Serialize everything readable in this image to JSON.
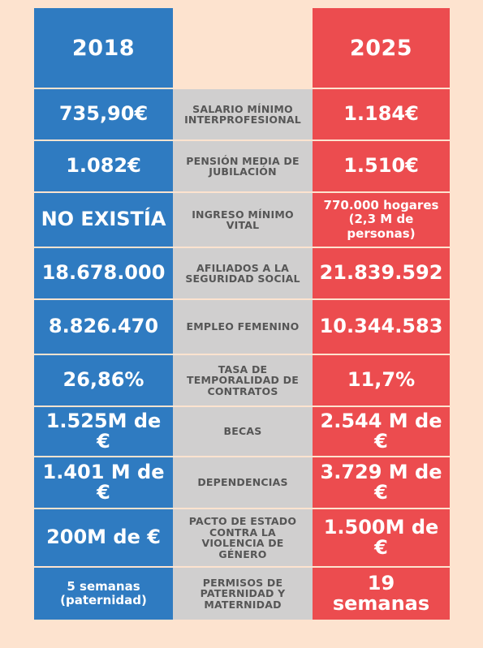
{
  "header": {
    "left_year": "2018",
    "right_year": "2025"
  },
  "rows": [
    {
      "left": "735,90€",
      "label": "SALARIO MÍNIMO INTERPROFESIONAL",
      "right": "1.184€"
    },
    {
      "left": "1.082€",
      "label": "PENSIÓN MEDIA DE JUBILACIÓN",
      "right": "1.510€"
    },
    {
      "left": "NO EXISTÍA",
      "label": "INGRESO MÍNIMO VITAL",
      "right": "770.000 hogares (2,3 M de personas)"
    },
    {
      "left": "18.678.000",
      "label": "AFILIADOS A LA SEGURIDAD SOCIAL",
      "right": "21.839.592"
    },
    {
      "left": "8.826.470",
      "label": "EMPLEO FEMENINO",
      "right": "10.344.583"
    },
    {
      "left": "26,86%",
      "label": "TASA DE TEMPORALIDAD DE CONTRATOS",
      "right": "11,7%"
    },
    {
      "left": "1.525M de €",
      "label": "BECAS",
      "right": "2.544 M de €"
    },
    {
      "left": "1.401 M de €",
      "label": "DEPENDENCIAS",
      "right": "3.729 M de €"
    },
    {
      "left": "200M de €",
      "label": "PACTO DE ESTADO CONTRA LA VIOLENCIA DE GÉNERO",
      "right": "1.500M de €"
    },
    {
      "left": "5 semanas (paternidad)",
      "label": "PERMISOS DE PATERNIDAD Y MATERNIDAD",
      "right": "19 semanas"
    }
  ],
  "colors": {
    "left": "#2f7bc1",
    "right": "#ec4c4f",
    "middle": "#d0cfcf",
    "background": "#fde3cf"
  }
}
